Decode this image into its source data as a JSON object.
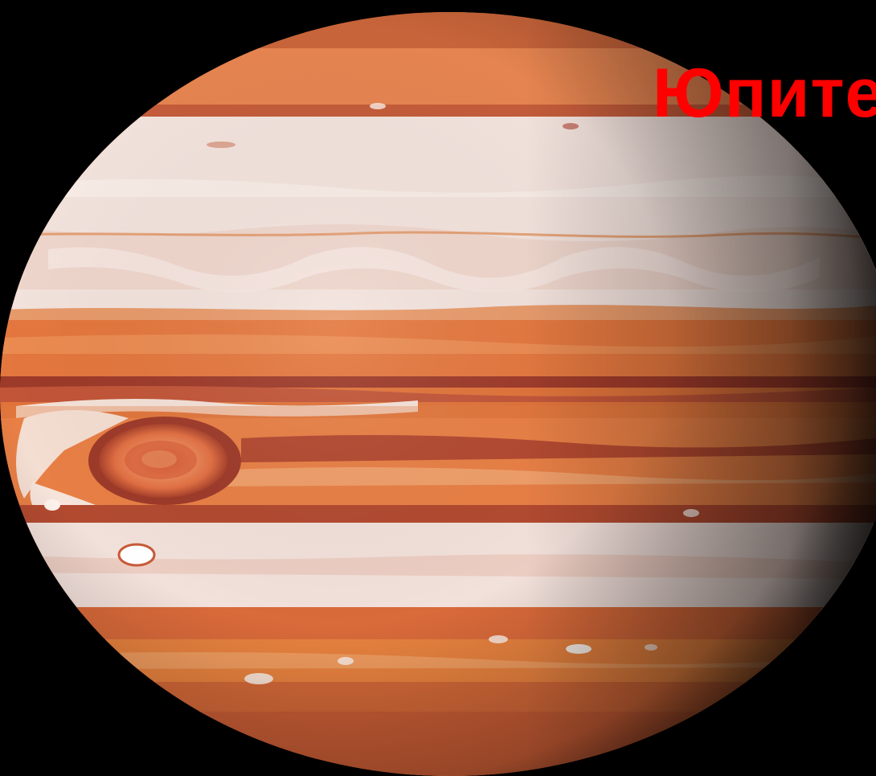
{
  "slide": {
    "title": "Юпитер",
    "title_color": "#ff0000",
    "background_color": "#000000"
  },
  "planet": {
    "name": "Jupiter",
    "features": [
      "cloud-bands",
      "great-red-spot",
      "white-oval-storms"
    ],
    "colors": {
      "orange": "#e0733a",
      "rust": "#b8502e",
      "cream": "#f4e6e0",
      "spot": "#e8784a",
      "shadow": "#000000"
    }
  }
}
